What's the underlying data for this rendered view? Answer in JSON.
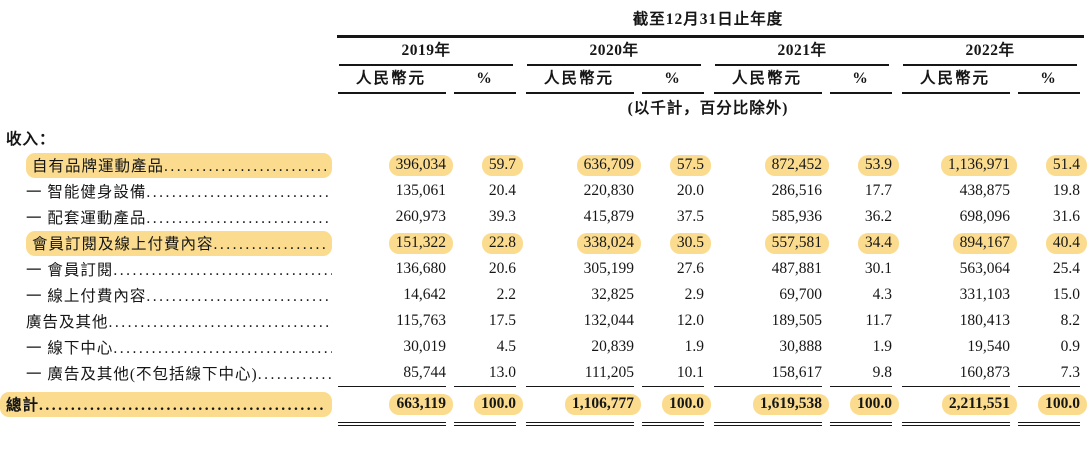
{
  "header": {
    "period_title": "截至12月31日止年度",
    "years": [
      "2019年",
      "2020年",
      "2021年",
      "2022年"
    ],
    "subcolumns": [
      "人民幣元",
      "%"
    ],
    "unit_note": "(以千計，百分比除外)"
  },
  "section_label": "收入：",
  "table": {
    "rows": [
      {
        "label": "自有品牌運動產品",
        "highlight": true,
        "values": [
          "396,034",
          "59.7",
          "636,709",
          "57.5",
          "872,452",
          "53.9",
          "1,136,971",
          "51.4"
        ]
      },
      {
        "label": "一 智能健身設備",
        "highlight": false,
        "values": [
          "135,061",
          "20.4",
          "220,830",
          "20.0",
          "286,516",
          "17.7",
          "438,875",
          "19.8"
        ]
      },
      {
        "label": "一 配套運動產品",
        "highlight": false,
        "values": [
          "260,973",
          "39.3",
          "415,879",
          "37.5",
          "585,936",
          "36.2",
          "698,096",
          "31.6"
        ]
      },
      {
        "label": "會員訂閱及線上付費內容",
        "highlight": true,
        "values": [
          "151,322",
          "22.8",
          "338,024",
          "30.5",
          "557,581",
          "34.4",
          "894,167",
          "40.4"
        ]
      },
      {
        "label": "一 會員訂閱",
        "highlight": false,
        "values": [
          "136,680",
          "20.6",
          "305,199",
          "27.6",
          "487,881",
          "30.1",
          "563,064",
          "25.4"
        ]
      },
      {
        "label": "一 線上付費內容",
        "highlight": false,
        "values": [
          "14,642",
          "2.2",
          "32,825",
          "2.9",
          "69,700",
          "4.3",
          "331,103",
          "15.0"
        ]
      },
      {
        "label": "廣告及其他",
        "highlight": false,
        "values": [
          "115,763",
          "17.5",
          "132,044",
          "12.0",
          "189,505",
          "11.7",
          "180,413",
          "8.2"
        ]
      },
      {
        "label": "一 線下中心",
        "highlight": false,
        "values": [
          "30,019",
          "4.5",
          "20,839",
          "1.9",
          "30,888",
          "1.9",
          "19,540",
          "0.9"
        ]
      },
      {
        "label": "一 廣告及其他(不包括線下中心)",
        "highlight": false,
        "values": [
          "85,744",
          "13.0",
          "111,205",
          "10.1",
          "158,617",
          "9.8",
          "160,873",
          "7.3"
        ]
      }
    ],
    "total": {
      "label": "總計",
      "highlight": true,
      "values": [
        "663,119",
        "100.0",
        "1,106,777",
        "100.0",
        "1,619,538",
        "100.0",
        "2,211,551",
        "100.0"
      ]
    }
  },
  "colors": {
    "highlight": "#FBDC8E",
    "rule": "#161616"
  }
}
